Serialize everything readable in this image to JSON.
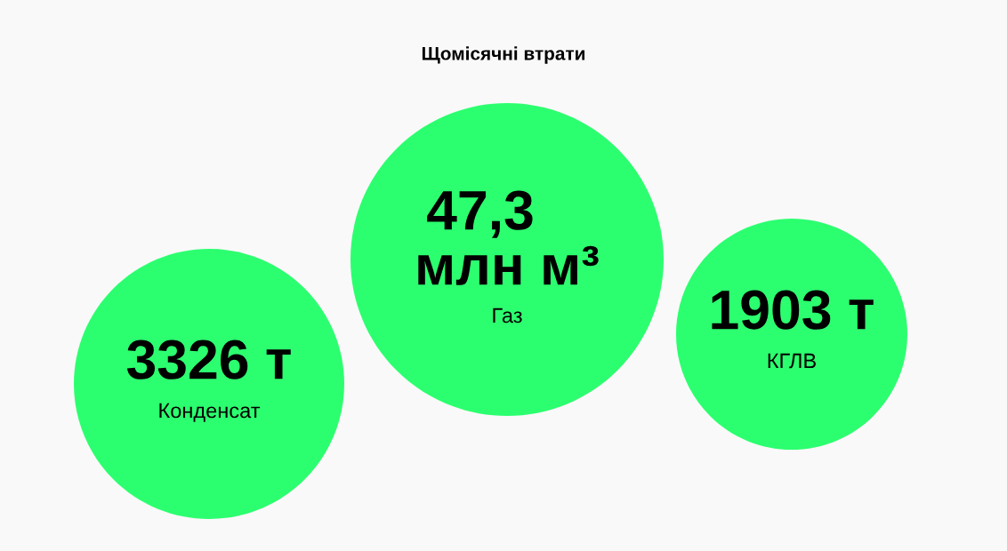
{
  "chart_data": {
    "type": "other",
    "title": "Щомісячні втрати",
    "categories": [
      "Конденсат",
      "Газ",
      "КГЛВ"
    ],
    "values": [
      3326,
      47.3,
      1903
    ],
    "value_labels": [
      "3326 т",
      "47,3 млн м³",
      "1903 т"
    ],
    "colors": [
      "#2cff6f",
      "#2cff6f",
      "#2cff6f"
    ]
  }
}
